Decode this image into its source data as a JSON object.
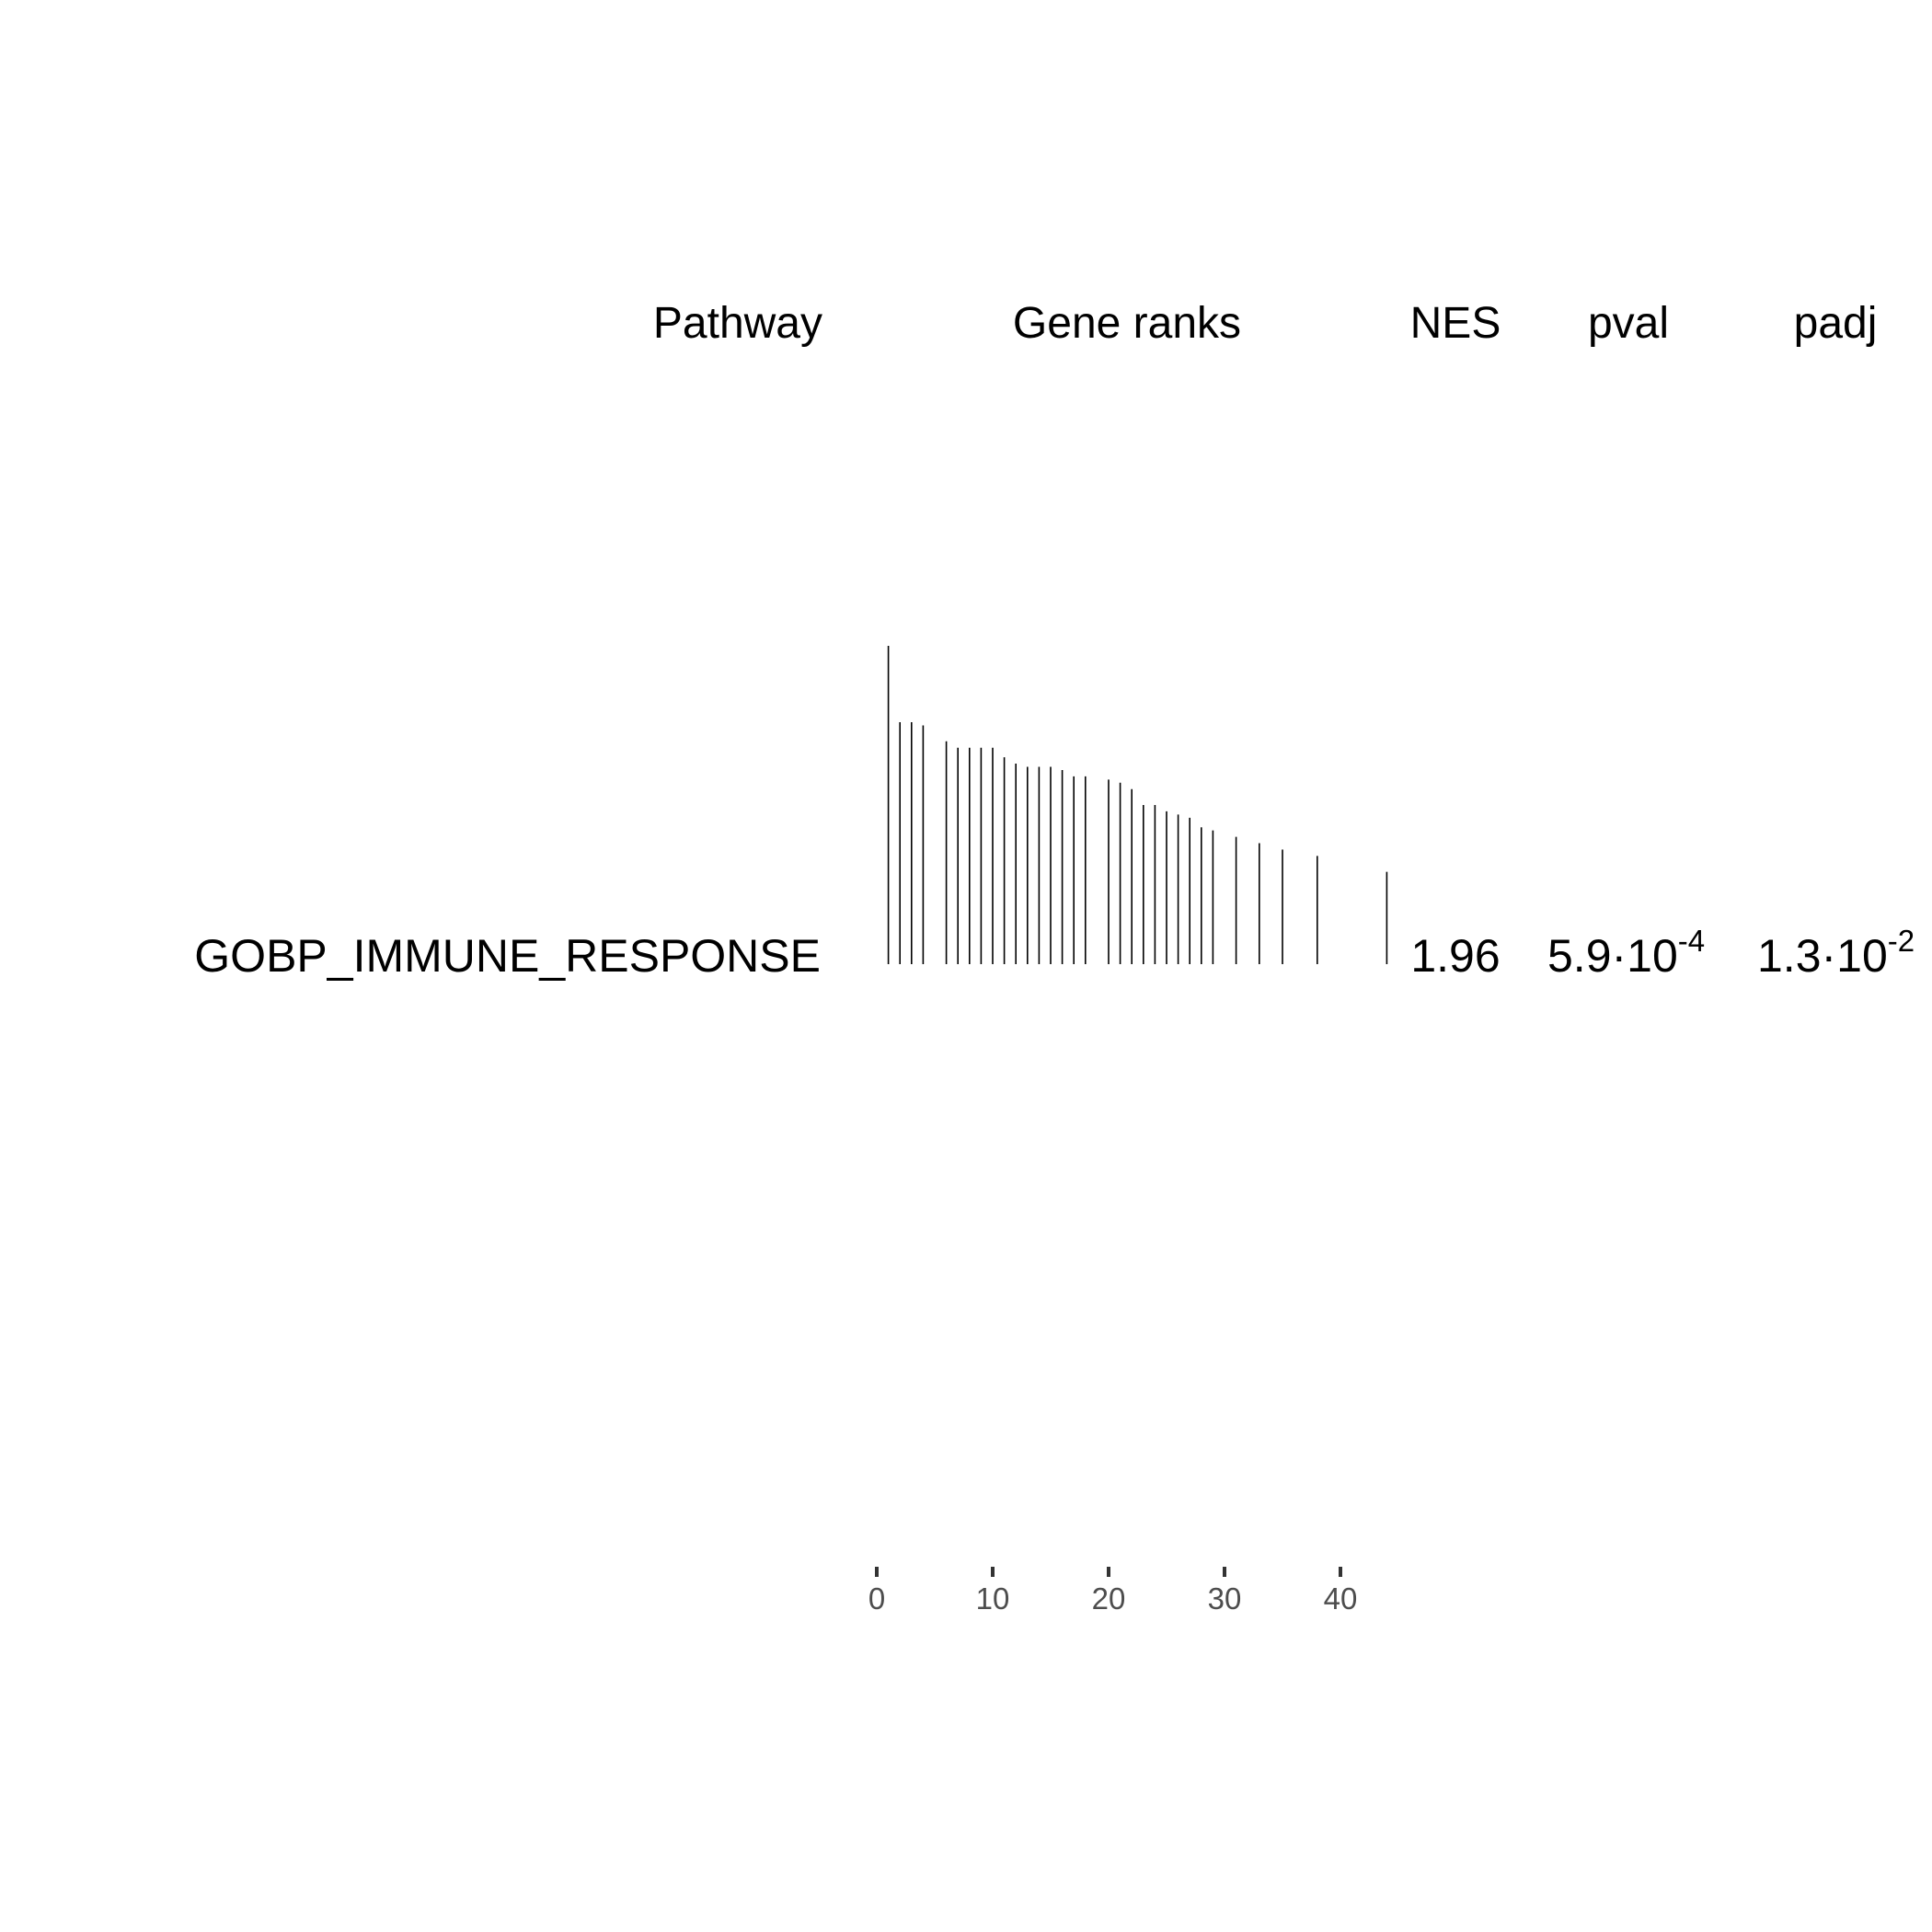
{
  "chart_data": {
    "type": "table",
    "columns": [
      "Pathway",
      "Gene ranks",
      "NES",
      "pval",
      "padj"
    ],
    "rows": [
      {
        "pathway": "GOBP_IMMUNE_RESPONSE",
        "nes": "1.96",
        "pval": {
          "mantissa": "5.9·10",
          "exponent": "-4"
        },
        "padj": {
          "mantissa": "1.3·10",
          "exponent": "-2"
        }
      }
    ],
    "gene_ranks": {
      "x_ticks": [
        0,
        10,
        20,
        30,
        40
      ],
      "xlim": [
        0,
        43
      ],
      "ylim": [
        0,
        1
      ],
      "ranks": [
        1,
        2,
        3,
        4,
        6,
        7,
        8,
        9,
        10,
        11,
        12,
        13,
        14,
        15,
        16,
        17,
        18,
        20,
        21,
        22,
        23,
        24,
        25,
        26,
        27,
        28,
        29,
        31,
        33,
        35,
        38,
        44
      ],
      "values": [
        1.0,
        0.76,
        0.76,
        0.75,
        0.7,
        0.68,
        0.68,
        0.68,
        0.68,
        0.65,
        0.63,
        0.62,
        0.62,
        0.62,
        0.61,
        0.59,
        0.59,
        0.58,
        0.57,
        0.55,
        0.5,
        0.5,
        0.48,
        0.47,
        0.46,
        0.43,
        0.42,
        0.4,
        0.38,
        0.36,
        0.34,
        0.29
      ]
    }
  }
}
